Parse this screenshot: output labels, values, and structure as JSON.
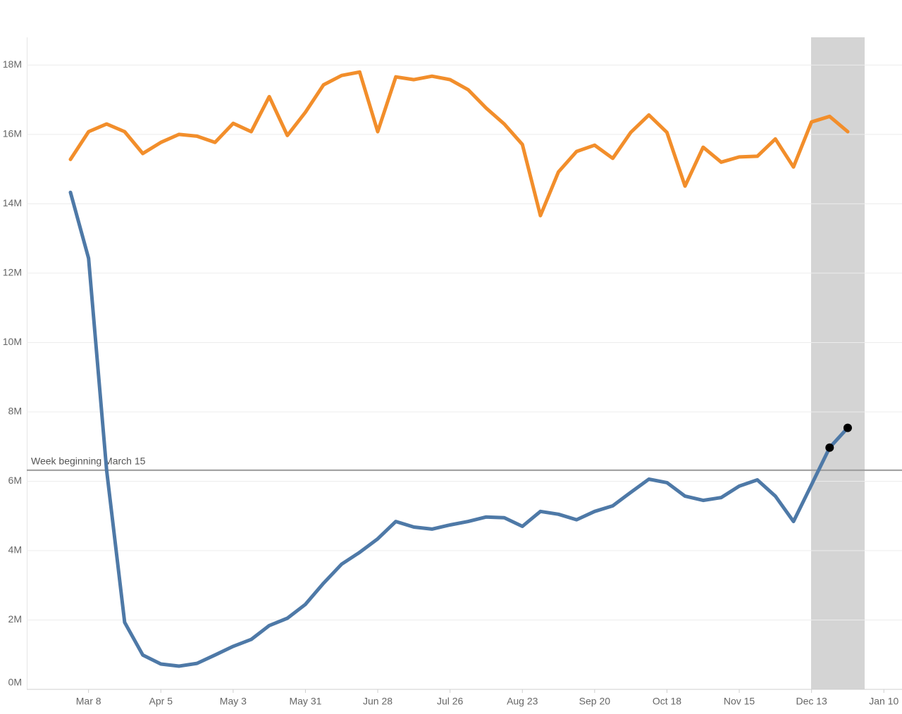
{
  "chart_data": {
    "type": "line",
    "categories": [
      null,
      "Mar 8",
      null,
      null,
      null,
      "Apr 5",
      null,
      null,
      null,
      "May 3",
      null,
      null,
      null,
      "May 31",
      null,
      null,
      null,
      "Jun 28",
      null,
      null,
      null,
      "Jul 26",
      null,
      null,
      null,
      "Aug 23",
      null,
      null,
      null,
      "Sep 20",
      null,
      null,
      null,
      "Oct 18",
      null,
      null,
      null,
      "Nov 15",
      null,
      null,
      null,
      "Dec 13",
      null,
      null,
      null,
      "Jan 10"
    ],
    "series": [
      {
        "color": "#f28e2b",
        "values": [
          15.28,
          16.08,
          16.3,
          16.08,
          15.45,
          15.77,
          16.0,
          15.95,
          15.77,
          16.32,
          16.08,
          17.09,
          15.97,
          16.64,
          17.43,
          17.7,
          17.8,
          16.08,
          17.66,
          17.58,
          17.68,
          17.58,
          17.29,
          16.76,
          16.3,
          15.71,
          13.66,
          14.92,
          15.51,
          15.69,
          15.31,
          16.06,
          16.56,
          16.06,
          14.51,
          15.63,
          15.2,
          15.35,
          15.37,
          15.87,
          15.06,
          16.36,
          16.52,
          16.08,
          null,
          null
        ]
      },
      {
        "color": "#4e79a7",
        "values": [
          14.33,
          12.43,
          6.32,
          1.93,
          0.99,
          0.73,
          0.67,
          0.75,
          0.99,
          1.24,
          1.44,
          1.84,
          2.05,
          2.45,
          3.06,
          3.61,
          3.95,
          4.34,
          4.84,
          4.68,
          4.62,
          4.74,
          4.84,
          4.97,
          4.95,
          4.7,
          5.13,
          5.05,
          4.89,
          5.13,
          5.29,
          5.68,
          6.06,
          5.96,
          5.57,
          5.45,
          5.53,
          5.86,
          6.04,
          5.57,
          4.84,
          5.9,
          6.97,
          7.54,
          null,
          null
        ],
        "markers": [
          42,
          43
        ],
        "marker_color": "#000000"
      }
    ],
    "ylim": [
      0,
      18.8
    ],
    "yticks": [
      {
        "value": 0,
        "label": "0M"
      },
      {
        "value": 2,
        "label": "2M"
      },
      {
        "value": 4,
        "label": "4M"
      },
      {
        "value": 6,
        "label": "6M"
      },
      {
        "value": 8,
        "label": "8M"
      },
      {
        "value": 10,
        "label": "10M"
      },
      {
        "value": 12,
        "label": "12M"
      },
      {
        "value": 14,
        "label": "14M"
      },
      {
        "value": 16,
        "label": "16M"
      },
      {
        "value": 18,
        "label": "18M"
      }
    ],
    "grid": true,
    "reference_line": {
      "value": 6.32,
      "label": "Week beginning March 15"
    }
  }
}
